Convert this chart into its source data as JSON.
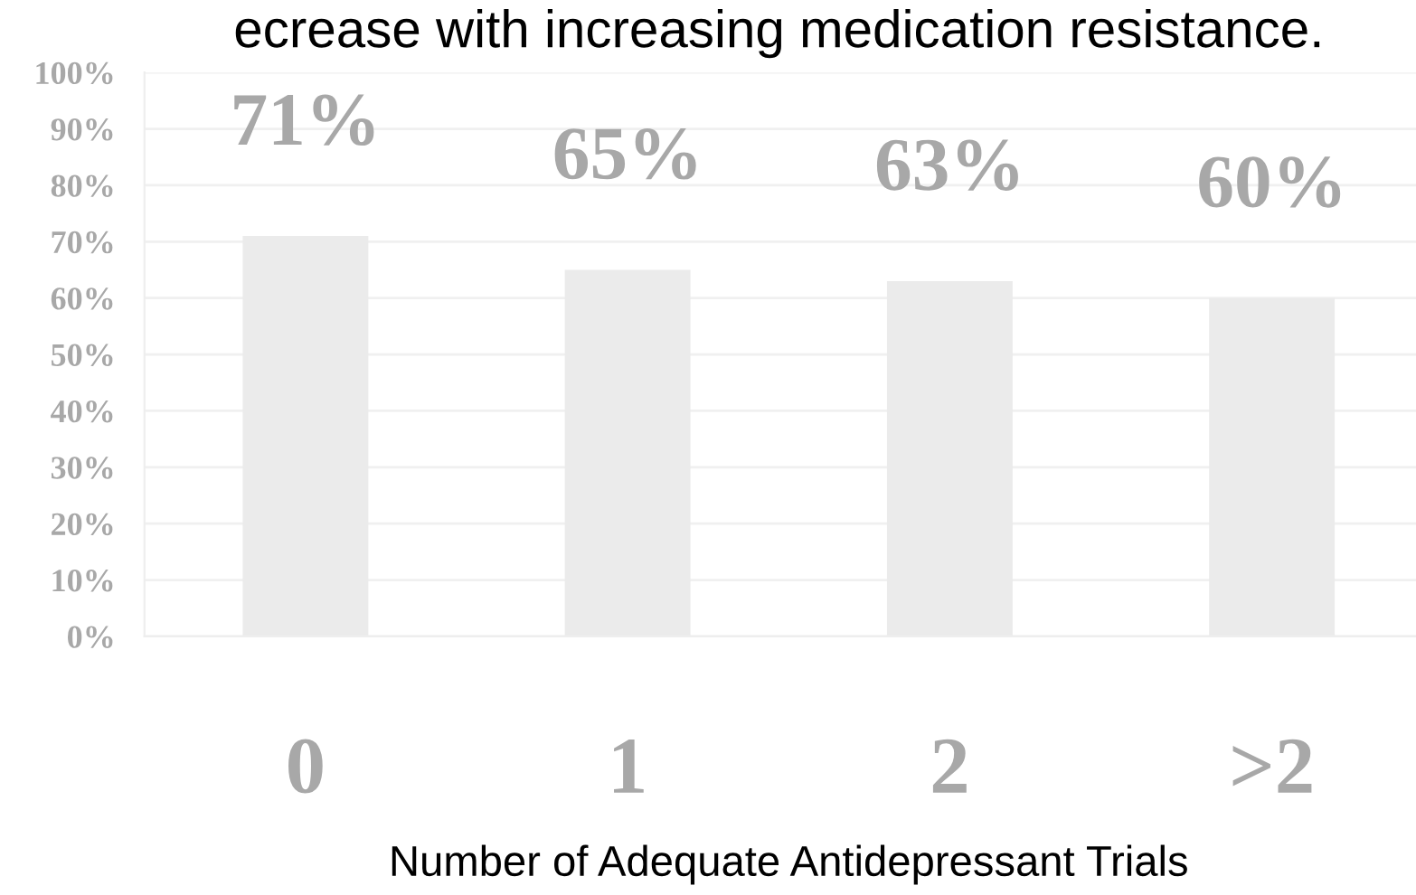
{
  "chart_data": {
    "type": "bar",
    "title": "ecrease with increasing medication resistance.",
    "xlabel": "Number of Adequate Antidepressant Trials",
    "categories": [
      "0",
      "1",
      "2",
      ">2"
    ],
    "values": [
      71,
      65,
      63,
      60
    ],
    "color": "#ebebeb",
    "ylim": [
      0,
      100
    ],
    "yticks": [
      {
        "value": 0,
        "label": "0%"
      },
      {
        "value": 10,
        "label": "10%"
      },
      {
        "value": 20,
        "label": "20%"
      },
      {
        "value": 30,
        "label": "30%"
      },
      {
        "value": 40,
        "label": "40%"
      },
      {
        "value": 50,
        "label": "50%"
      },
      {
        "value": 60,
        "label": "60%"
      },
      {
        "value": 70,
        "label": "70%"
      },
      {
        "value": 80,
        "label": "80%"
      },
      {
        "value": 90,
        "label": "90%"
      },
      {
        "value": 100,
        "label": "100%"
      }
    ],
    "value_labels": [
      "71%",
      "65%",
      "63%",
      "60%"
    ],
    "grid": "y",
    "legend": false
  }
}
